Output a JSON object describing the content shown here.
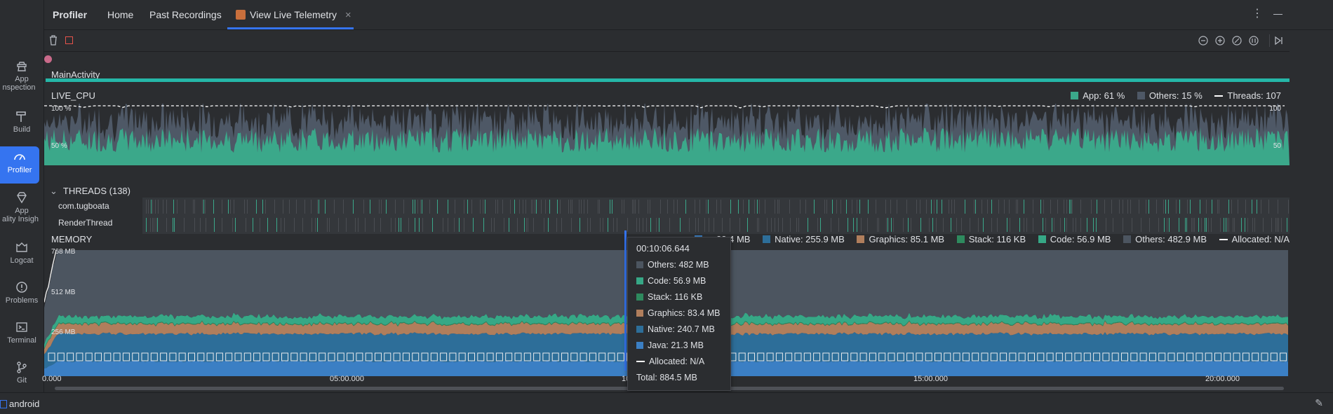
{
  "rail": {
    "items": [
      {
        "label1": "App",
        "label2": "nspection"
      },
      {
        "label1": "Build"
      },
      {
        "label1": "Profiler"
      },
      {
        "label1": "App",
        "label2": "ality Insigh"
      },
      {
        "label1": "Logcat"
      },
      {
        "label1": "Problems"
      },
      {
        "label1": "Terminal"
      },
      {
        "label1": "Git"
      }
    ]
  },
  "tabs": {
    "title": "Profiler",
    "home": "Home",
    "past": "Past Recordings",
    "live": "View Live Telemetry",
    "close": "×"
  },
  "activity": {
    "label": "MainActivity"
  },
  "cpu": {
    "label": "LIVE_CPU",
    "app": "App: 61 %",
    "others": "Others: 15 %",
    "threads": "Threads: 107",
    "y_top": "100 %",
    "y_mid": "50 %",
    "y_top_r": "100",
    "y_mid_r": "50"
  },
  "threads": {
    "header": "THREADS (138)",
    "rows": [
      "com.tugboata",
      "RenderThread"
    ]
  },
  "memory": {
    "label": "MEMORY",
    "legend": {
      "java": "a: 23.4 MB",
      "native": "Native: 255.9 MB",
      "graphics": "Graphics: 85.1 MB",
      "stack": "Stack: 116 KB",
      "code": "Code: 56.9 MB",
      "others": "Others: 482.9 MB",
      "allocated": "Allocated: N/A"
    },
    "y_768": "768 MB",
    "y_512": "512 MB",
    "y_256": "256 MB"
  },
  "timeline": {
    "t0": "0.000",
    "t5": "05:00.000",
    "t10": "10",
    "t15": "15:00.000",
    "t20": "20:00.000"
  },
  "tooltip": {
    "time": "00:10:06.644",
    "others": "Others: 482 MB",
    "code": "Code: 56.9 MB",
    "stack": "Stack: 116 KB",
    "graphics": "Graphics: 83.4 MB",
    "native": "Native: 240.7 MB",
    "java": "Java: 21.3 MB",
    "allocated": "Allocated: N/A",
    "total": "Total: 884.5 MB"
  },
  "status": {
    "project": "android"
  },
  "colors": {
    "accent": "#3574f0",
    "cpu_app": "#3ba88a",
    "cpu_others": "#4e5866",
    "mem_others": "#4c5560",
    "mem_code": "#36a886",
    "mem_stack": "#2e8a5e",
    "mem_graphics": "#b07e5c",
    "mem_native": "#2d6e99",
    "mem_java": "#3b7fc4",
    "activity_bar": "#25b7a8"
  }
}
